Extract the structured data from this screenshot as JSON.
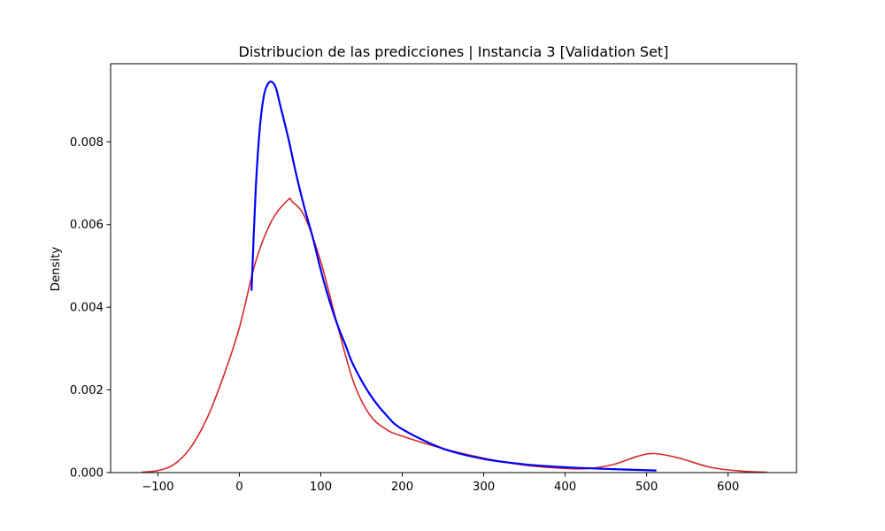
{
  "chart_data": {
    "type": "line",
    "title": "Distribucion de las predicciones | Instancia 3 [Validation Set]",
    "xlabel": "",
    "ylabel": "Density",
    "xlim": [
      -158,
      684
    ],
    "ylim": [
      0,
      0.00989
    ],
    "xticks": [
      -100,
      0,
      100,
      200,
      300,
      400,
      500,
      600
    ],
    "xtick_labels": [
      "−100",
      "0",
      "100",
      "200",
      "300",
      "400",
      "500",
      "600"
    ],
    "yticks": [
      0,
      0.002,
      0.004,
      0.006,
      0.008
    ],
    "ytick_labels": [
      "0.000",
      "0.002",
      "0.004",
      "0.006",
      "0.008"
    ],
    "grid": false,
    "legend": "none",
    "series": [
      {
        "color": "#d62728",
        "x": [
          -120,
          -100,
          -80,
          -60,
          -40,
          -20,
          0,
          20,
          40,
          60,
          65,
          80,
          100,
          120,
          140,
          160,
          180,
          200,
          250,
          300,
          350,
          400,
          430,
          460,
          490,
          510,
          540,
          580,
          620,
          648
        ],
        "y": [
          1e-05,
          5e-05,
          0.0002,
          0.0006,
          0.0013,
          0.0023,
          0.0035,
          0.0051,
          0.0061,
          0.0066,
          0.00655,
          0.0062,
          0.0051,
          0.0036,
          0.0022,
          0.0014,
          0.00105,
          0.00088,
          0.00058,
          0.00035,
          0.00018,
          0.0001,
          0.0001,
          0.0002,
          0.0004,
          0.00046,
          0.00035,
          0.00012,
          3e-05,
          1e-05
        ]
      },
      {
        "color": "#0000ff",
        "x": [
          15,
          20,
          25,
          30,
          35,
          40,
          45,
          50,
          60,
          70,
          80,
          90,
          100,
          110,
          120,
          130,
          140,
          160,
          180,
          200,
          250,
          300,
          350,
          400,
          450,
          512
        ],
        "y": [
          0.0044,
          0.0068,
          0.0083,
          0.0091,
          0.0094,
          0.00945,
          0.0093,
          0.0089,
          0.0081,
          0.0072,
          0.0064,
          0.0057,
          0.0049,
          0.0042,
          0.0036,
          0.0031,
          0.0026,
          0.0019,
          0.0014,
          0.00105,
          0.00058,
          0.00033,
          0.0002,
          0.00013,
          9e-05,
          5e-05
        ]
      }
    ]
  }
}
